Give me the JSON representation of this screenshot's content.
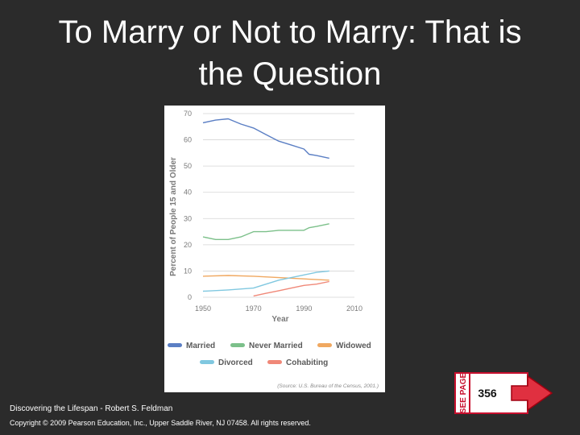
{
  "slide": {
    "title": "To Marry or Not to Marry: That is the Question",
    "footer_book": "Discovering the Lifespan - Robert S. Feldman",
    "footer_copyright": "Copyright © 2009 Pearson Education, Inc., Upper Saddle River, NJ 07458. All rights reserved."
  },
  "badge": {
    "label": "SEE PAGE",
    "page": "356",
    "colors": {
      "border": "#c8102e",
      "fill": "#ffffff"
    }
  },
  "chart_data": {
    "type": "line",
    "title": "",
    "xlabel": "Year",
    "ylabel": "Percent of People 15 and Older",
    "xlim": [
      1950,
      2010
    ],
    "ylim": [
      0,
      70
    ],
    "xticks": [
      1950,
      1970,
      1990,
      2010
    ],
    "yticks": [
      0,
      10,
      20,
      30,
      40,
      50,
      60,
      70
    ],
    "grid": "horizontal",
    "legend": "bottom",
    "source": "(Source: U.S. Bureau of the Census, 2001.)",
    "series": [
      {
        "name": "Married",
        "color": "#5b7fc4",
        "x": [
          1950,
          1955,
          1960,
          1965,
          1970,
          1975,
          1980,
          1985,
          1990,
          1992,
          1995,
          2000
        ],
        "y": [
          66.5,
          67.5,
          68,
          66,
          64.5,
          62,
          59.5,
          58,
          56.5,
          54.5,
          54,
          53
        ]
      },
      {
        "name": "Never Married",
        "color": "#7cc08a",
        "x": [
          1950,
          1955,
          1960,
          1965,
          1970,
          1975,
          1980,
          1985,
          1990,
          1992,
          1995,
          2000
        ],
        "y": [
          23,
          22,
          22,
          23,
          25,
          25,
          25.5,
          25.5,
          25.5,
          26.5,
          27,
          28
        ]
      },
      {
        "name": "Widowed",
        "color": "#f0a860",
        "x": [
          1950,
          1960,
          1970,
          1980,
          1990,
          2000
        ],
        "y": [
          8,
          8.3,
          8,
          7.5,
          7,
          6.5
        ]
      },
      {
        "name": "Divorced",
        "color": "#80c8e0",
        "x": [
          1950,
          1960,
          1970,
          1975,
          1980,
          1985,
          1990,
          1995,
          2000
        ],
        "y": [
          2.3,
          2.8,
          3.5,
          5,
          6.5,
          7.5,
          8.5,
          9.5,
          10
        ]
      },
      {
        "name": "Cohabiting",
        "color": "#f08878",
        "x": [
          1970,
          1975,
          1980,
          1985,
          1990,
          1995,
          2000
        ],
        "y": [
          0.5,
          1.5,
          2.5,
          3.5,
          4.5,
          5,
          6
        ]
      }
    ]
  }
}
